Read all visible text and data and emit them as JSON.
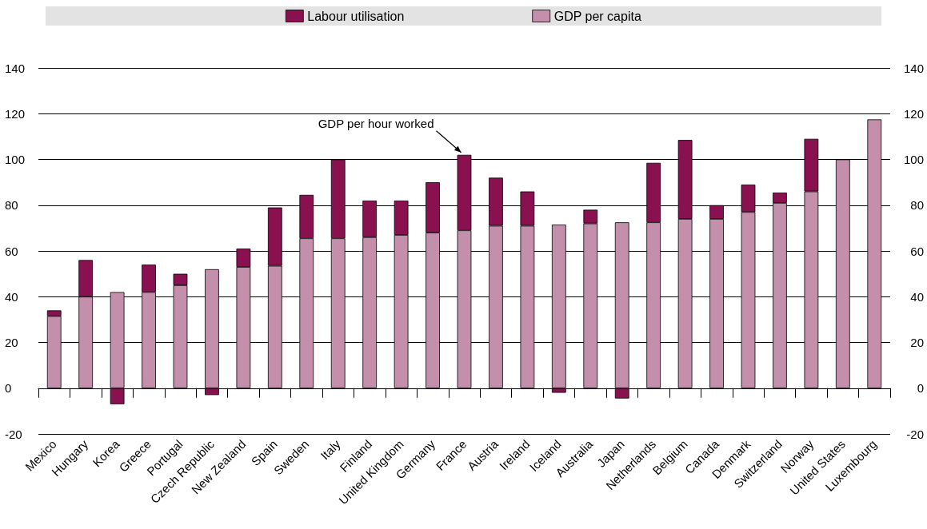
{
  "chart_data": {
    "type": "bar",
    "stacked": true,
    "categories": [
      "Mexico",
      "Hungary",
      "Korea",
      "Greece",
      "Portugal",
      "Czech Republic",
      "New Zealand",
      "Spain",
      "Sweden",
      "Italy",
      "Finland",
      "United Kingdom",
      "Germany",
      "France",
      "Austria",
      "Ireland",
      "Iceland",
      "Australia",
      "Japan",
      "Netherlands",
      "Belgium",
      "Canada",
      "Denmark",
      "Switzerland",
      "Norway",
      "United States",
      "Luxembourg"
    ],
    "series": [
      {
        "name": "GDP per capita",
        "color": "#c48fab",
        "values": [
          31.5,
          40,
          42,
          42,
          45,
          52,
          53,
          53.5,
          65.5,
          65.5,
          66,
          67,
          68,
          69,
          71,
          71,
          71.5,
          72,
          72.5,
          72.5,
          74,
          74,
          77,
          81,
          86,
          100,
          117.5
        ]
      },
      {
        "name": "Labour utilisation",
        "color": "#8a1150",
        "values": [
          2.5,
          16,
          -7,
          12,
          5,
          -3,
          8,
          25.5,
          19,
          34.5,
          16,
          15,
          22,
          33,
          21,
          15,
          -2,
          6,
          -4.5,
          26,
          34.5,
          6,
          12,
          4.5,
          23,
          null,
          null
        ]
      }
    ],
    "ylim": [
      -20,
      140
    ],
    "yticks": [
      -20,
      0,
      20,
      40,
      60,
      80,
      100,
      120,
      140
    ],
    "y2lim": [
      -20,
      140
    ],
    "y2ticks": [
      -20,
      0,
      20,
      40,
      60,
      80,
      100,
      120,
      140
    ],
    "grid": "y",
    "legend": "top",
    "annotations": [
      {
        "text": "GDP per hour worked",
        "x": "France",
        "y": 102
      }
    ]
  }
}
